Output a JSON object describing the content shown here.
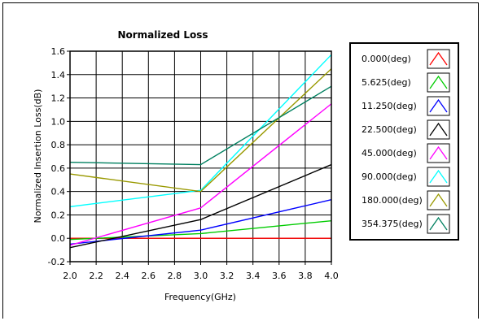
{
  "chart_data": {
    "type": "line",
    "title": "Normalized Loss",
    "xlabel": "Frequency(GHz)",
    "ylabel": "Normalized Insertion Loss(dB)",
    "xlim": [
      2.0,
      4.0
    ],
    "ylim": [
      -0.2,
      1.6
    ],
    "xticks": [
      "2.0",
      "2.2",
      "2.4",
      "2.6",
      "2.8",
      "3.0",
      "3.2",
      "3.4",
      "3.6",
      "3.8",
      "4.0"
    ],
    "yticks": [
      "-0.2",
      "0.0",
      "0.2",
      "0.4",
      "0.6",
      "0.8",
      "1.0",
      "1.2",
      "1.4",
      "1.6"
    ],
    "grid": true,
    "legend_position": "right",
    "series": [
      {
        "name": "0.000(deg)",
        "color": "#ff0000",
        "x": [
          2.0,
          4.0
        ],
        "y": [
          0.0,
          0.0
        ]
      },
      {
        "name": "5.625(deg)",
        "color": "#00cc00",
        "x": [
          2.0,
          3.0,
          4.0
        ],
        "y": [
          -0.01,
          0.04,
          0.15
        ]
      },
      {
        "name": "11.250(deg)",
        "color": "#0000ff",
        "x": [
          2.0,
          3.0,
          4.0
        ],
        "y": [
          -0.05,
          0.07,
          0.33
        ]
      },
      {
        "name": "22.500(deg)",
        "color": "#000000",
        "x": [
          2.0,
          3.0,
          4.0
        ],
        "y": [
          -0.08,
          0.16,
          0.63
        ]
      },
      {
        "name": "45.000(deg)",
        "color": "#ff00ff",
        "x": [
          2.0,
          3.0,
          4.0
        ],
        "y": [
          -0.06,
          0.26,
          1.15
        ]
      },
      {
        "name": "90.000(deg)",
        "color": "#00ffff",
        "x": [
          2.0,
          3.0,
          4.0
        ],
        "y": [
          0.27,
          0.41,
          1.57
        ]
      },
      {
        "name": "180.000(deg)",
        "color": "#999900",
        "x": [
          2.0,
          3.0,
          4.0
        ],
        "y": [
          0.55,
          0.4,
          1.45
        ]
      },
      {
        "name": "354.375(deg)",
        "color": "#008060",
        "x": [
          2.0,
          3.0,
          4.0
        ],
        "y": [
          0.65,
          0.63,
          1.3
        ]
      }
    ]
  }
}
